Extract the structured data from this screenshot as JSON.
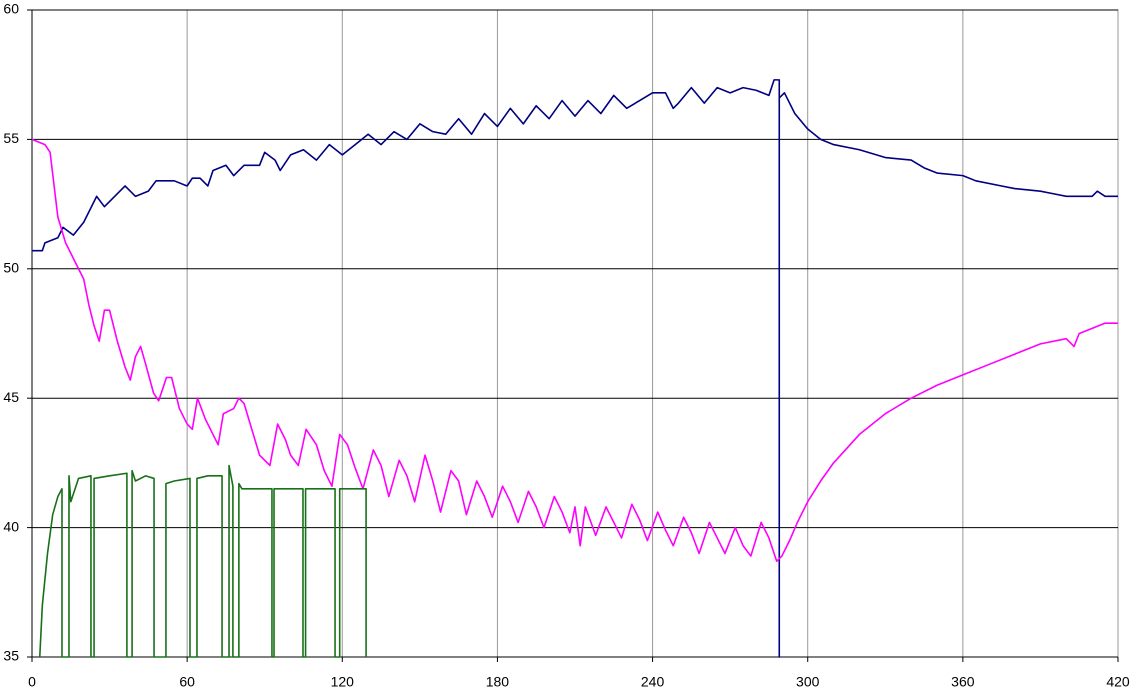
{
  "chart_data": {
    "type": "line",
    "xlim": [
      0,
      420
    ],
    "xticks": [
      0,
      60,
      120,
      180,
      240,
      300,
      360,
      420
    ],
    "ylim": [
      35,
      60
    ],
    "yticks": [
      35,
      40,
      45,
      50,
      55,
      60
    ],
    "grid": true,
    "series": [
      {
        "color": "#000080",
        "x": [
          0,
          4,
          5,
          10,
          12,
          16,
          20,
          22,
          25,
          28,
          32,
          36,
          40,
          45,
          48,
          55,
          60,
          62,
          65,
          68,
          70,
          75,
          78,
          82,
          88,
          90,
          94,
          96,
          100,
          105,
          110,
          115,
          120,
          125,
          130,
          135,
          140,
          145,
          150,
          155,
          160,
          165,
          170,
          175,
          180,
          185,
          190,
          195,
          200,
          205,
          210,
          215,
          220,
          225,
          230,
          235,
          240,
          245,
          248,
          250,
          255,
          260,
          265,
          270,
          275,
          280,
          285,
          287,
          289,
          289,
          289,
          291,
          295,
          300,
          305,
          310,
          320,
          330,
          340,
          345,
          350,
          360,
          365,
          375,
          380,
          390,
          395,
          400,
          410,
          412,
          415,
          420
        ],
        "values": [
          50.7,
          50.7,
          51.0,
          51.2,
          51.6,
          51.3,
          51.8,
          52.2,
          52.8,
          52.4,
          52.8,
          53.2,
          52.8,
          53.0,
          53.4,
          53.4,
          53.2,
          53.5,
          53.5,
          53.2,
          53.8,
          54.0,
          53.6,
          54.0,
          54.0,
          54.5,
          54.2,
          53.8,
          54.4,
          54.6,
          54.2,
          54.8,
          54.4,
          54.8,
          55.2,
          54.8,
          55.3,
          55.0,
          55.6,
          55.3,
          55.2,
          55.8,
          55.2,
          56.0,
          55.5,
          56.2,
          55.6,
          56.3,
          55.8,
          56.5,
          55.9,
          56.5,
          56.0,
          56.7,
          56.2,
          56.5,
          56.8,
          56.8,
          56.2,
          56.4,
          57.0,
          56.4,
          57.0,
          56.8,
          57.0,
          56.9,
          56.7,
          57.3,
          57.3,
          35,
          56.6,
          56.8,
          56.0,
          55.4,
          55.0,
          54.8,
          54.6,
          54.3,
          54.2,
          53.9,
          53.7,
          53.6,
          53.4,
          53.2,
          53.1,
          53.0,
          52.9,
          52.8,
          52.8,
          53.0,
          52.8,
          52.8
        ]
      },
      {
        "color": "#ff00ff",
        "x": [
          0,
          5,
          7,
          10,
          13,
          15,
          17,
          20,
          22,
          24,
          26,
          28,
          30,
          33,
          36,
          38,
          40,
          42,
          44,
          47,
          49,
          52,
          54,
          57,
          60,
          62,
          64,
          67,
          70,
          72,
          74,
          78,
          80,
          82,
          85,
          88,
          92,
          95,
          98,
          100,
          103,
          106,
          110,
          113,
          116,
          119,
          122,
          125,
          128,
          132,
          135,
          138,
          142,
          145,
          148,
          152,
          155,
          158,
          162,
          165,
          168,
          172,
          175,
          178,
          182,
          185,
          188,
          192,
          195,
          198,
          202,
          205,
          208,
          210,
          212,
          214,
          218,
          222,
          225,
          228,
          232,
          235,
          238,
          242,
          245,
          248,
          252,
          255,
          258,
          262,
          265,
          268,
          272,
          275,
          278,
          282,
          285,
          288,
          290,
          293,
          296,
          300,
          305,
          310,
          320,
          330,
          340,
          350,
          360,
          370,
          380,
          390,
          400,
          403,
          405,
          410,
          415,
          420
        ],
        "values": [
          55.0,
          54.8,
          54.5,
          52.0,
          51.0,
          50.6,
          50.2,
          49.6,
          48.6,
          47.8,
          47.2,
          48.4,
          48.4,
          47.2,
          46.2,
          45.7,
          46.6,
          47.0,
          46.3,
          45.2,
          44.9,
          45.8,
          45.8,
          44.6,
          44.0,
          43.8,
          45.0,
          44.2,
          43.6,
          43.2,
          44.4,
          44.6,
          45.0,
          44.8,
          43.8,
          42.8,
          42.4,
          44.0,
          43.4,
          42.8,
          42.4,
          43.8,
          43.2,
          42.2,
          41.6,
          43.6,
          43.2,
          42.3,
          41.5,
          43.0,
          42.4,
          41.2,
          42.6,
          42.0,
          41.0,
          42.8,
          41.8,
          40.6,
          42.2,
          41.8,
          40.5,
          41.8,
          41.2,
          40.4,
          41.6,
          41.0,
          40.2,
          41.4,
          40.8,
          40.0,
          41.2,
          40.6,
          39.8,
          40.8,
          39.3,
          40.8,
          39.7,
          40.8,
          40.2,
          39.6,
          40.9,
          40.3,
          39.5,
          40.6,
          39.9,
          39.3,
          40.4,
          39.8,
          39.0,
          40.2,
          39.6,
          39.0,
          40.0,
          39.3,
          38.9,
          40.2,
          39.6,
          38.7,
          38.9,
          39.5,
          40.2,
          41.0,
          41.8,
          42.5,
          43.6,
          44.4,
          45.0,
          45.5,
          45.9,
          46.3,
          46.7,
          47.1,
          47.3,
          47.0,
          47.5,
          47.7,
          47.9,
          47.9
        ]
      },
      {
        "color": "#187018",
        "x": [
          3,
          4,
          6,
          8,
          10,
          11.6,
          11.6,
          14.3,
          14.3,
          15,
          18,
          22.8,
          22.8,
          24,
          24,
          30,
          36.7,
          36.7,
          38.7,
          38.7,
          40,
          44,
          47.2,
          47.2,
          51.8,
          51.8,
          55,
          61.1,
          61.1,
          63.8,
          63.8,
          68,
          73.5,
          73.5,
          76.2,
          76.2,
          77.7,
          77.7,
          80,
          80,
          81.2,
          81.2,
          92.8,
          92.8,
          93.6,
          93.6,
          104.8,
          104.8,
          105.8,
          105.8,
          117.2,
          117.2,
          119,
          119,
          129.2,
          129.2
        ],
        "values": [
          35,
          37,
          39,
          40.5,
          41.2,
          41.5,
          35,
          35,
          42.0,
          41.0,
          41.9,
          42.0,
          35,
          35,
          41.9,
          42.0,
          42.1,
          35,
          35,
          42.2,
          41.8,
          42.0,
          41.9,
          35,
          35,
          41.7,
          41.8,
          41.9,
          35,
          35,
          41.9,
          42.0,
          42.0,
          35,
          35,
          42.4,
          41.6,
          35,
          35,
          41.7,
          41.5,
          41.5,
          41.5,
          35,
          35,
          41.5,
          41.5,
          35,
          35,
          41.5,
          41.5,
          35,
          35,
          41.5,
          41.5,
          35
        ]
      }
    ]
  }
}
